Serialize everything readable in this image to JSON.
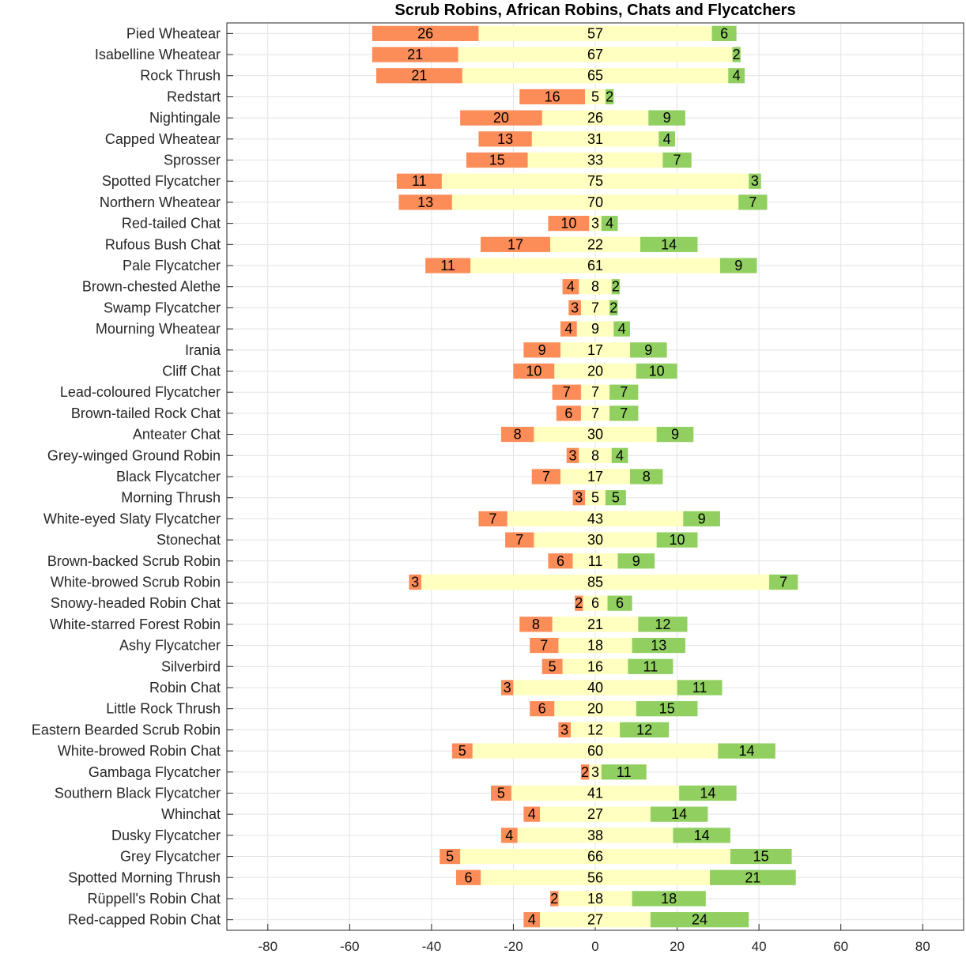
{
  "chart_data": {
    "type": "bar",
    "orientation": "horizontal",
    "stacked": "diverging",
    "title": "Scrub Robins, African Robins, Chats and Flycatchers",
    "xlabel": "",
    "ylabel": "",
    "xlim": [
      -90,
      90
    ],
    "xticks": [
      -80,
      -60,
      -40,
      -20,
      0,
      20,
      40,
      60,
      80
    ],
    "grid": true,
    "legend": "none",
    "colors": {
      "negative": "#fc8d59",
      "neutral": "#ffffbf",
      "positive": "#91cf60"
    },
    "categories": [
      "Pied Wheatear",
      "Isabelline Wheatear",
      "Rock Thrush",
      "Redstart",
      "Nightingale",
      "Capped Wheatear",
      "Sprosser",
      "Spotted Flycatcher",
      "Northern Wheatear",
      "Red-tailed Chat",
      "Rufous Bush Chat",
      "Pale Flycatcher",
      "Brown-chested Alethe",
      "Swamp Flycatcher",
      "Mourning Wheatear",
      "Irania",
      "Cliff Chat",
      "Lead-coloured Flycatcher",
      "Brown-tailed Rock Chat",
      "Anteater Chat",
      "Grey-winged Ground Robin",
      "Black Flycatcher",
      "Morning Thrush",
      "White-eyed Slaty Flycatcher",
      "Stonechat",
      "Brown-backed Scrub Robin",
      "White-browed Scrub Robin",
      "Snowy-headed Robin Chat",
      "White-starred Forest Robin",
      "Ashy Flycatcher",
      "Silverbird",
      "Robin Chat",
      "Little Rock Thrush",
      "Eastern Bearded Scrub Robin",
      "White-browed Robin Chat",
      "Gambaga Flycatcher",
      "Southern Black Flycatcher",
      "Whinchat",
      "Dusky Flycatcher",
      "Grey Flycatcher",
      "Spotted Morning Thrush",
      "Rüppell's Robin Chat",
      "Red-capped Robin Chat"
    ],
    "series": [
      {
        "values": [
          26,
          21,
          21,
          16,
          20,
          13,
          15,
          11,
          13,
          10,
          17,
          11,
          4,
          3,
          4,
          9,
          10,
          7,
          6,
          8,
          3,
          7,
          3,
          7,
          7,
          6,
          3,
          2,
          8,
          7,
          5,
          3,
          6,
          3,
          5,
          2,
          5,
          4,
          4,
          5,
          6,
          2,
          4
        ]
      },
      {
        "values": [
          57,
          67,
          65,
          5,
          26,
          31,
          33,
          75,
          70,
          3,
          22,
          61,
          8,
          7,
          9,
          17,
          20,
          7,
          7,
          30,
          8,
          17,
          5,
          43,
          30,
          11,
          85,
          6,
          21,
          18,
          16,
          40,
          20,
          12,
          60,
          3,
          41,
          27,
          38,
          66,
          56,
          18,
          27
        ]
      },
      {
        "values": [
          6,
          2,
          4,
          2,
          9,
          4,
          7,
          3,
          7,
          4,
          14,
          9,
          2,
          2,
          4,
          9,
          10,
          7,
          7,
          9,
          4,
          8,
          5,
          9,
          10,
          9,
          7,
          6,
          12,
          13,
          11,
          11,
          15,
          12,
          14,
          11,
          14,
          14,
          14,
          15,
          21,
          18,
          24
        ]
      }
    ]
  }
}
